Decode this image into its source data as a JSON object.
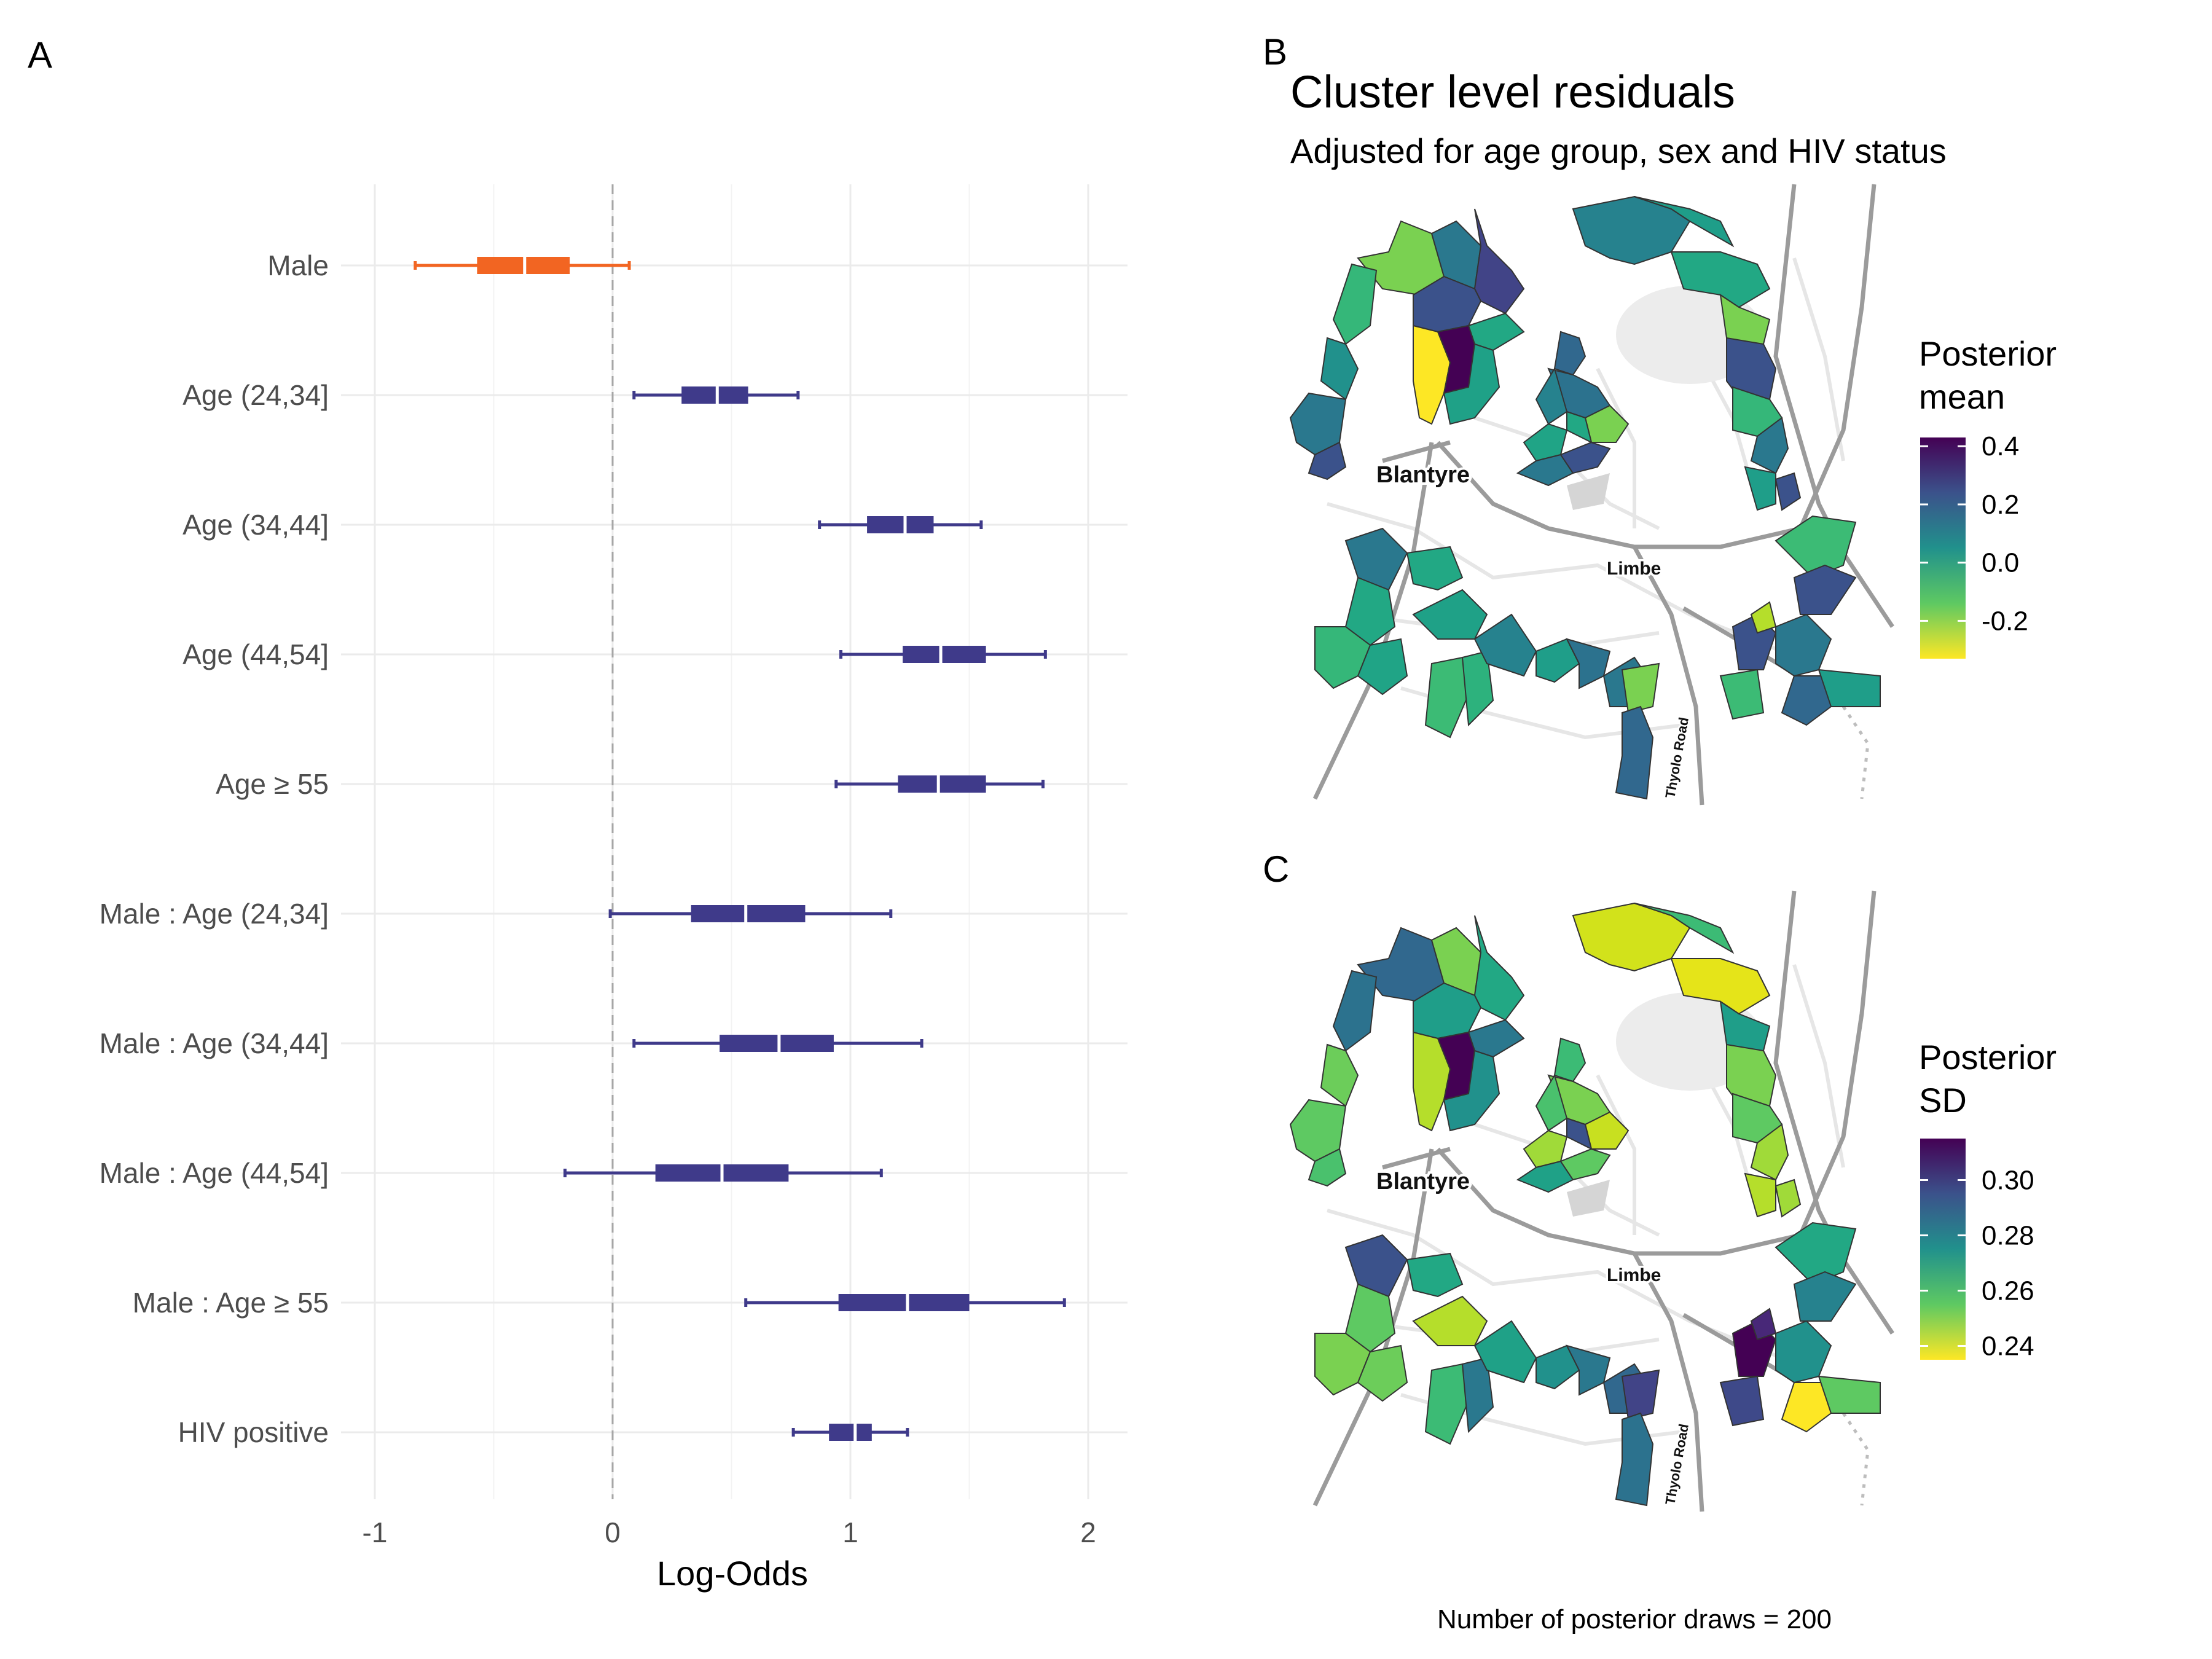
{
  "panels": {
    "a_label": "A",
    "b_label": "B",
    "c_label": "C"
  },
  "chart_data": [
    {
      "panel": "A",
      "type": "interval",
      "xlabel": "Log-Odds",
      "xlim": [
        -1.2,
        2.15
      ],
      "xticks": [
        -1,
        0,
        1,
        2
      ],
      "xtick_labels": [
        "-1",
        "0",
        "1",
        "2"
      ],
      "reference_line_x": 0,
      "grid": true,
      "colors": {
        "first_row": "#F26522",
        "other_rows": "#3F3A8A",
        "reference_line": "#A6A6A6"
      },
      "rows": [
        {
          "label": "Male",
          "median": -0.37,
          "q25": -0.57,
          "q75": -0.18,
          "lo": -0.83,
          "hi": 0.07
        },
        {
          "label": "Age (24,34]",
          "median": 0.44,
          "q25": 0.29,
          "q75": 0.57,
          "lo": 0.09,
          "hi": 0.78
        },
        {
          "label": "Age (34,44]",
          "median": 1.23,
          "q25": 1.07,
          "q75": 1.35,
          "lo": 0.87,
          "hi": 1.55
        },
        {
          "label": "Age (44,54]",
          "median": 1.38,
          "q25": 1.22,
          "q75": 1.57,
          "lo": 0.96,
          "hi": 1.82
        },
        {
          "label": "Age ≥ 55",
          "median": 1.37,
          "q25": 1.2,
          "q75": 1.57,
          "lo": 0.94,
          "hi": 1.81
        },
        {
          "label": "Male : Age (24,34]",
          "median": 0.56,
          "q25": 0.33,
          "q75": 0.81,
          "lo": -0.01,
          "hi": 1.17
        },
        {
          "label": "Male : Age (34,44]",
          "median": 0.7,
          "q25": 0.45,
          "q75": 0.93,
          "lo": 0.09,
          "hi": 1.3
        },
        {
          "label": "Male : Age (44,54]",
          "median": 0.46,
          "q25": 0.18,
          "q75": 0.74,
          "lo": -0.2,
          "hi": 1.13
        },
        {
          "label": "Male : Age ≥ 55",
          "median": 1.24,
          "q25": 0.95,
          "q75": 1.5,
          "lo": 0.56,
          "hi": 1.9
        },
        {
          "label": "HIV positive",
          "median": 1.02,
          "q25": 0.91,
          "q75": 1.09,
          "lo": 0.76,
          "hi": 1.24
        }
      ]
    },
    {
      "panel": "B",
      "type": "choropleth",
      "title": "Cluster level residuals",
      "subtitle": "Adjusted for age group, sex and HIV status",
      "legend_title": "Posterior mean",
      "legend_title_line1": "Posterior",
      "legend_title_line2": "mean",
      "legend_range": [
        -0.33,
        0.43
      ],
      "legend_breaks": [
        0.4,
        0.2,
        0.0,
        -0.2
      ],
      "legend_break_labels": [
        "0.4",
        "0.2",
        "0.0",
        "-0.2"
      ],
      "place_labels": [
        "Blantyre",
        "Limbe",
        "Thyolo Road"
      ],
      "color_scale": "viridis (reversed)"
    },
    {
      "panel": "C",
      "type": "choropleth",
      "legend_title": "Posterior SD",
      "legend_title_line1": "Posterior",
      "legend_title_line2": "SD",
      "legend_range": [
        0.235,
        0.315
      ],
      "legend_breaks": [
        0.3,
        0.28,
        0.26,
        0.24
      ],
      "legend_break_labels": [
        "0.30",
        "0.28",
        "0.26",
        "0.24"
      ],
      "place_labels": [
        "Blantyre",
        "Limbe",
        "Thyolo Road"
      ],
      "color_scale": "viridis (reversed)"
    }
  ],
  "caption": "Number of posterior draws = 200"
}
